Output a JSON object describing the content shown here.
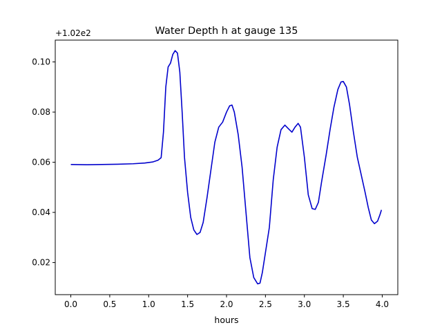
{
  "chart_data": {
    "type": "line",
    "title": "Water Depth h at gauge 135",
    "xlabel": "hours",
    "ylabel": "",
    "offset_label": "+1.02e2",
    "xlim": [
      -0.2,
      4.2
    ],
    "ylim": [
      0.0072,
      0.1087
    ],
    "x_ticks": [
      0.0,
      0.5,
      1.0,
      1.5,
      2.0,
      2.5,
      3.0,
      3.5,
      4.0
    ],
    "x_tick_labels": [
      "0.0",
      "0.5",
      "1.0",
      "1.5",
      "2.0",
      "2.5",
      "3.0",
      "3.5",
      "4.0"
    ],
    "y_ticks": [
      0.02,
      0.04,
      0.06,
      0.08,
      0.1
    ],
    "y_tick_labels": [
      "0.02",
      "0.04",
      "0.06",
      "0.08",
      "0.10"
    ],
    "grid": false,
    "line_color": "#0000cc",
    "series": [
      {
        "points": [
          [
            0.0,
            0.0591
          ],
          [
            0.2,
            0.059
          ],
          [
            0.4,
            0.0591
          ],
          [
            0.6,
            0.0592
          ],
          [
            0.8,
            0.0594
          ],
          [
            0.95,
            0.0597
          ],
          [
            1.05,
            0.0601
          ],
          [
            1.12,
            0.0608
          ],
          [
            1.16,
            0.0618
          ],
          [
            1.19,
            0.072
          ],
          [
            1.22,
            0.09
          ],
          [
            1.25,
            0.098
          ],
          [
            1.28,
            0.0995
          ],
          [
            1.31,
            0.103
          ],
          [
            1.34,
            0.1045
          ],
          [
            1.37,
            0.1035
          ],
          [
            1.4,
            0.096
          ],
          [
            1.43,
            0.08
          ],
          [
            1.46,
            0.062
          ],
          [
            1.5,
            0.048
          ],
          [
            1.54,
            0.038
          ],
          [
            1.58,
            0.033
          ],
          [
            1.62,
            0.0312
          ],
          [
            1.66,
            0.032
          ],
          [
            1.7,
            0.036
          ],
          [
            1.75,
            0.046
          ],
          [
            1.8,
            0.057
          ],
          [
            1.85,
            0.068
          ],
          [
            1.9,
            0.074
          ],
          [
            1.95,
            0.076
          ],
          [
            2.0,
            0.08
          ],
          [
            2.04,
            0.0825
          ],
          [
            2.07,
            0.0828
          ],
          [
            2.1,
            0.08
          ],
          [
            2.15,
            0.071
          ],
          [
            2.2,
            0.058
          ],
          [
            2.25,
            0.04
          ],
          [
            2.3,
            0.022
          ],
          [
            2.35,
            0.014
          ],
          [
            2.4,
            0.0115
          ],
          [
            2.43,
            0.0118
          ],
          [
            2.46,
            0.016
          ],
          [
            2.5,
            0.024
          ],
          [
            2.55,
            0.034
          ],
          [
            2.6,
            0.053
          ],
          [
            2.65,
            0.066
          ],
          [
            2.7,
            0.073
          ],
          [
            2.75,
            0.0748
          ],
          [
            2.8,
            0.0732
          ],
          [
            2.84,
            0.072
          ],
          [
            2.88,
            0.074
          ],
          [
            2.92,
            0.0755
          ],
          [
            2.95,
            0.074
          ],
          [
            3.0,
            0.062
          ],
          [
            3.05,
            0.047
          ],
          [
            3.1,
            0.0415
          ],
          [
            3.14,
            0.0412
          ],
          [
            3.18,
            0.044
          ],
          [
            3.22,
            0.052
          ],
          [
            3.28,
            0.063
          ],
          [
            3.33,
            0.073
          ],
          [
            3.38,
            0.082
          ],
          [
            3.43,
            0.089
          ],
          [
            3.47,
            0.092
          ],
          [
            3.5,
            0.0922
          ],
          [
            3.54,
            0.09
          ],
          [
            3.58,
            0.083
          ],
          [
            3.63,
            0.072
          ],
          [
            3.68,
            0.062
          ],
          [
            3.73,
            0.055
          ],
          [
            3.78,
            0.048
          ],
          [
            3.82,
            0.042
          ],
          [
            3.86,
            0.037
          ],
          [
            3.9,
            0.0355
          ],
          [
            3.94,
            0.0365
          ],
          [
            3.97,
            0.039
          ],
          [
            3.99,
            0.041
          ]
        ]
      }
    ]
  }
}
